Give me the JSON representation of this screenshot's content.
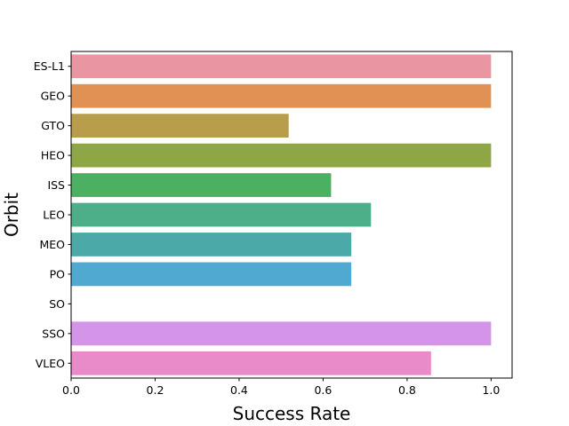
{
  "chart_data": {
    "type": "bar",
    "orientation": "horizontal",
    "title": "",
    "xlabel": "Success Rate",
    "ylabel": "Orbit",
    "xlim": [
      0.0,
      1.05
    ],
    "xticks": [
      0.0,
      0.2,
      0.4,
      0.6,
      0.8,
      1.0
    ],
    "xtick_labels": [
      "0.0",
      "0.2",
      "0.4",
      "0.6",
      "0.8",
      "1.0"
    ],
    "grid": false,
    "categories": [
      "ES-L1",
      "GEO",
      "GTO",
      "HEO",
      "ISS",
      "LEO",
      "MEO",
      "PO",
      "SO",
      "SSO",
      "VLEO"
    ],
    "values": [
      1.0,
      1.0,
      0.518,
      1.0,
      0.619,
      0.714,
      0.667,
      0.667,
      0.0,
      1.0,
      0.857
    ],
    "colors": [
      "#ea96a2",
      "#e19153",
      "#b89e4a",
      "#8ea644",
      "#4bb061",
      "#4caf8a",
      "#4baaa8",
      "#50a9d0",
      "#9aa4ef",
      "#d494e8",
      "#e98bc8"
    ]
  }
}
